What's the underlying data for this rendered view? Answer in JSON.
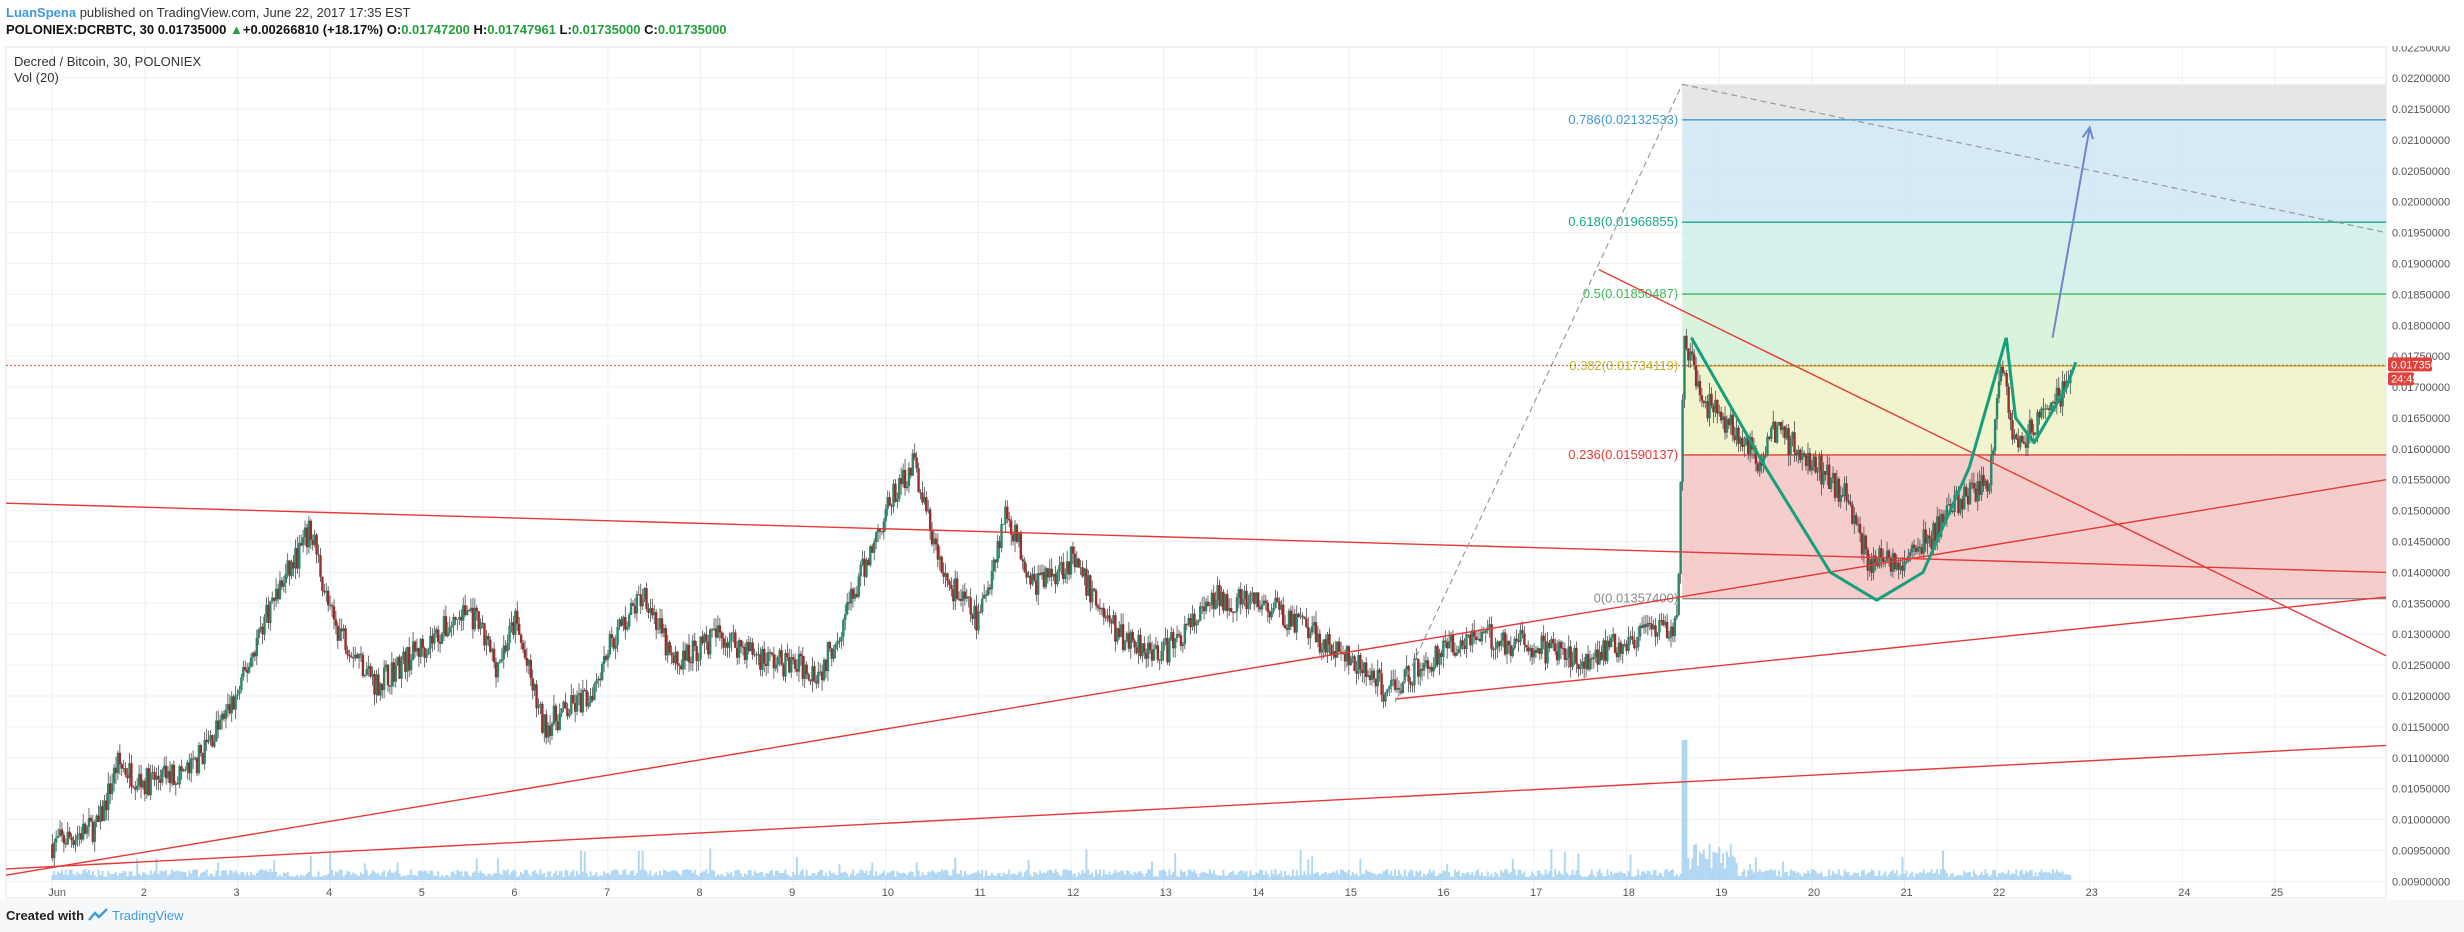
{
  "header": {
    "author": "LuanSpena",
    "published": "published on TradingView.com, June 22, 2017 17:35 EST",
    "symbol": "POLONIEX:DCRBTC, 30",
    "last": "0.01735000",
    "change_arrow": "▲",
    "change": "+0.00266810 (+18.17%)",
    "o_label": "O:",
    "o": "0.01747200",
    "h_label": "H:",
    "h": "0.01747961",
    "l_label": "L:",
    "l": "0.01735000",
    "c_label": "C:",
    "c": "0.01735000"
  },
  "pane": {
    "title": "Decred / Bitcoin, 30, POLONIEX",
    "vol": "Vol (20)"
  },
  "price_tag": {
    "price": "0.01735000",
    "countdown": "24:49",
    "color": "#e0413a"
  },
  "footer": {
    "created": "Created with",
    "brand": "TradingView",
    "logo_icon": "tradingview-logo-icon"
  },
  "colors": {
    "up": "#26876a",
    "down": "#9c2b2b",
    "trendline": "#e53935",
    "cup": "#159f7a",
    "arrow": "#6f86c9",
    "volume": "#9fcdf0",
    "axis_text": "#555555",
    "grid": "#eef0f3"
  },
  "chart_data": {
    "type": "candlestick",
    "title": "Decred / Bitcoin, 30, POLONIEX",
    "x_ticks": [
      "Jun",
      "2",
      "3",
      "4",
      "5",
      "6",
      "7",
      "8",
      "9",
      "10",
      "11",
      "12",
      "13",
      "14",
      "15",
      "16",
      "17",
      "18",
      "19",
      "20",
      "21",
      "22",
      "23",
      "24",
      "25"
    ],
    "x_domain_days": [
      0.5,
      26.2
    ],
    "y_ticks": [
      "0.02250000",
      "0.02200000",
      "0.02150000",
      "0.02100000",
      "0.02050000",
      "0.02000000",
      "0.01950000",
      "0.01900000",
      "0.01850000",
      "0.01800000",
      "0.01750000",
      "0.01700000",
      "0.01650000",
      "0.01600000",
      "0.01550000",
      "0.01500000",
      "0.01450000",
      "0.01400000",
      "0.01350000",
      "0.01300000",
      "0.01250000",
      "0.01200000",
      "0.01150000",
      "0.01100000",
      "0.01050000",
      "0.01000000",
      "0.00950000",
      "0.00900000"
    ],
    "ylim": [
      0.00873,
      0.02252
    ],
    "price_path": [
      [
        1.0,
        0.0096
      ],
      [
        1.5,
        0.0099
      ],
      [
        1.7,
        0.0109
      ],
      [
        2.0,
        0.0106
      ],
      [
        2.5,
        0.0108
      ],
      [
        3.0,
        0.012
      ],
      [
        3.3,
        0.0133
      ],
      [
        3.8,
        0.0147
      ],
      [
        4.0,
        0.0133
      ],
      [
        4.5,
        0.0122
      ],
      [
        5.0,
        0.0128
      ],
      [
        5.5,
        0.0134
      ],
      [
        5.8,
        0.0125
      ],
      [
        6.0,
        0.0132
      ],
      [
        6.3,
        0.0115
      ],
      [
        6.8,
        0.012
      ],
      [
        7.0,
        0.0128
      ],
      [
        7.4,
        0.0137
      ],
      [
        7.7,
        0.0125
      ],
      [
        8.2,
        0.013
      ],
      [
        8.7,
        0.0126
      ],
      [
        9.3,
        0.0124
      ],
      [
        9.7,
        0.0138
      ],
      [
        10.0,
        0.015
      ],
      [
        10.3,
        0.0158
      ],
      [
        10.6,
        0.014
      ],
      [
        11.0,
        0.0132
      ],
      [
        11.3,
        0.015
      ],
      [
        11.6,
        0.0138
      ],
      [
        12.0,
        0.0142
      ],
      [
        12.5,
        0.013
      ],
      [
        13.0,
        0.0127
      ],
      [
        13.6,
        0.0136
      ],
      [
        14.2,
        0.0134
      ],
      [
        14.8,
        0.0128
      ],
      [
        15.4,
        0.0121
      ],
      [
        15.7,
        0.0124
      ],
      [
        16.3,
        0.013
      ],
      [
        17.0,
        0.0128
      ],
      [
        17.5,
        0.0126
      ],
      [
        18.0,
        0.0129
      ],
      [
        18.55,
        0.0131
      ],
      [
        18.62,
        0.0178
      ],
      [
        18.8,
        0.0168
      ],
      [
        19.2,
        0.0163
      ],
      [
        19.4,
        0.0158
      ],
      [
        19.6,
        0.0163
      ],
      [
        20.0,
        0.0158
      ],
      [
        20.4,
        0.0152
      ],
      [
        20.6,
        0.0142
      ],
      [
        21.0,
        0.0142
      ],
      [
        21.3,
        0.0146
      ],
      [
        21.6,
        0.0152
      ],
      [
        21.9,
        0.0154
      ],
      [
        22.05,
        0.0174
      ],
      [
        22.2,
        0.016
      ],
      [
        22.5,
        0.0165
      ],
      [
        22.75,
        0.017
      ],
      [
        22.8,
        0.0174
      ]
    ],
    "fibonacci": [
      {
        "label": "0(0.01357400)",
        "value": 0.013574,
        "color": "#8a8a8a",
        "fill": "#e8e8e8"
      },
      {
        "label": "0.236(0.01590137)",
        "value": 0.01590137,
        "color": "#e53935",
        "fill": "#f6c9c9"
      },
      {
        "label": "0.382(0.01734119)",
        "value": 0.01734119,
        "color": "#b7b92a",
        "fill": "#eef2c5"
      },
      {
        "label": "0.5(0.01850487)",
        "value": 0.01850487,
        "color": "#3fb95a",
        "fill": "#d3f1d7"
      },
      {
        "label": "0.618(0.01966855)",
        "value": 0.01966855,
        "color": "#1aa58a",
        "fill": "#cdeee9"
      },
      {
        "label": "0.786(0.02132533)",
        "value": 0.02132533,
        "color": "#3c9ad6",
        "fill": "#cfe6f5"
      }
    ],
    "fib_top": 0.0219,
    "fib_start_day": 18.6,
    "trendlines": [
      {
        "x1": 0.5,
        "y1": 0.01512,
        "x2": 26.2,
        "y2": 0.014
      },
      {
        "x1": 0.5,
        "y1": 0.0091,
        "x2": 26.2,
        "y2": 0.0155
      },
      {
        "x1": 0.5,
        "y1": 0.0092,
        "x2": 26.2,
        "y2": 0.0112
      },
      {
        "x1": 17.7,
        "y1": 0.0189,
        "x2": 26.2,
        "y2": 0.01265
      },
      {
        "x1": 15.5,
        "y1": 0.01195,
        "x2": 26.2,
        "y2": 0.0136
      }
    ],
    "dashed_lines": [
      {
        "x1": 15.5,
        "y1": 0.0119,
        "x2": 18.6,
        "y2": 0.0219
      },
      {
        "x1": 18.6,
        "y1": 0.0219,
        "x2": 26.2,
        "y2": 0.0195
      }
    ],
    "cup_path": [
      [
        18.7,
        0.0178
      ],
      [
        19.5,
        0.0157
      ],
      [
        20.2,
        0.014
      ],
      [
        20.7,
        0.01355
      ],
      [
        21.2,
        0.014
      ],
      [
        21.7,
        0.0157
      ],
      [
        22.1,
        0.0178
      ]
    ],
    "handle_path": [
      [
        22.1,
        0.0178
      ],
      [
        22.2,
        0.0165
      ],
      [
        22.4,
        0.0161
      ],
      [
        22.75,
        0.017
      ],
      [
        22.85,
        0.0174
      ]
    ],
    "projection_arrow": {
      "x1": 22.6,
      "y1": 0.0178,
      "x2": 23.0,
      "y2": 0.0212
    }
  }
}
